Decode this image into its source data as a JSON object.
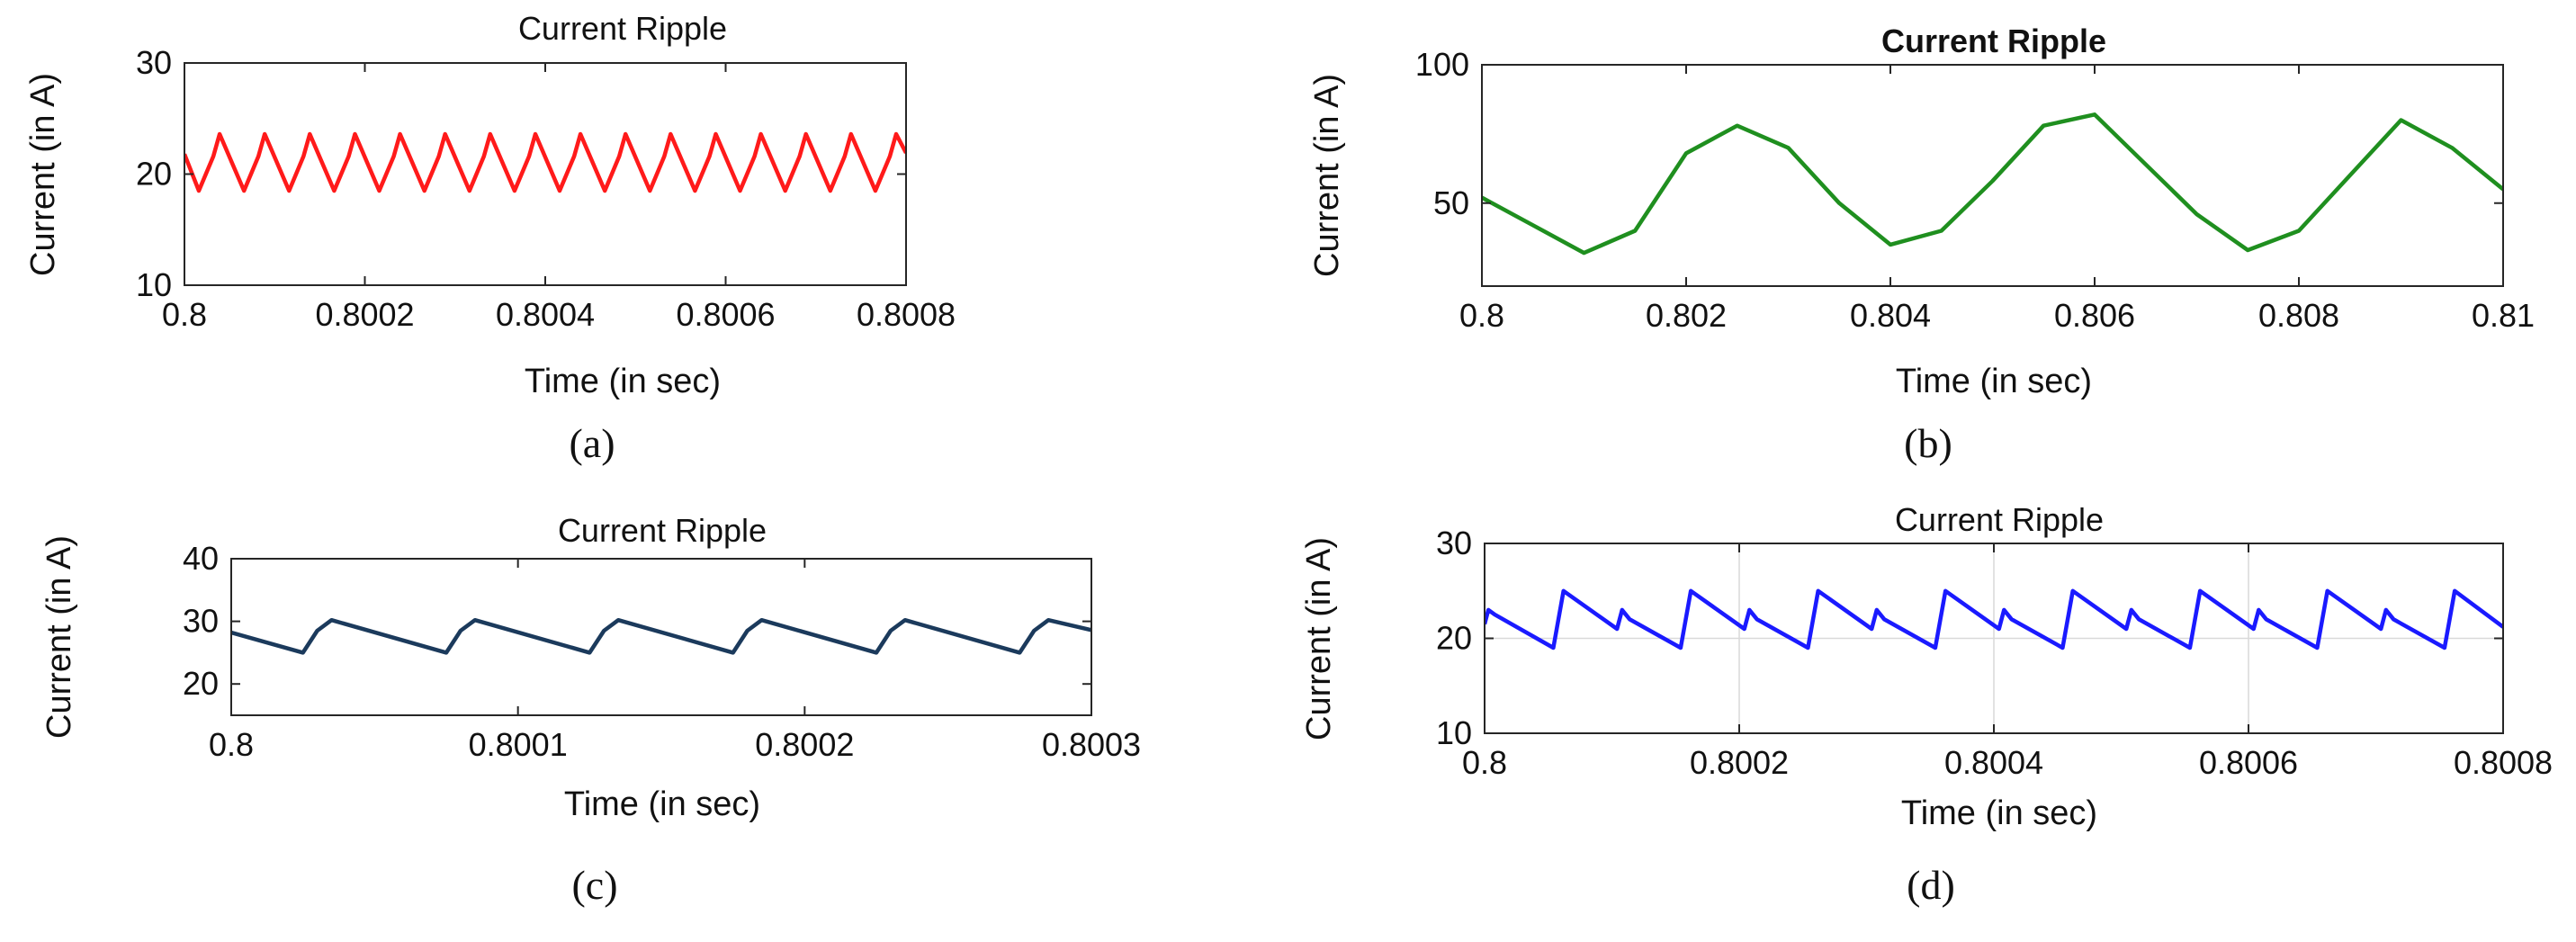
{
  "figure": {
    "panel_labels": [
      "(a)",
      "(b)",
      "(c)",
      "(d)"
    ]
  },
  "chart_data": [
    {
      "panel": "(a)",
      "type": "line",
      "title": "Current Ripple",
      "xlabel": "Time (in sec)",
      "ylabel": "Current (in A)",
      "xlim": [
        0.8,
        0.8008
      ],
      "ylim": [
        10,
        30
      ],
      "xticks": [
        0.8,
        0.8002,
        0.8004,
        0.8006,
        0.8008
      ],
      "xtick_labels": [
        "0.8",
        "0.8002",
        "0.8004",
        "0.8006",
        "0.8008"
      ],
      "yticks": [
        10,
        20,
        30
      ],
      "ytick_labels": [
        "10",
        "20",
        "30"
      ],
      "grid": false,
      "color": "#ff1a1a",
      "series": [
        {
          "waveform": "sawtooth",
          "period": 5e-05,
          "min": 18.5,
          "max": 23.6,
          "x": [
            0.8,
            0.800016,
            0.800032,
            0.800039,
            0.800066,
            0.800082,
            0.800089,
            0.800116,
            0.800132,
            0.800139,
            0.800166,
            0.800182,
            0.800189,
            0.800216,
            0.800232,
            0.800239,
            0.800266,
            0.800282,
            0.800289,
            0.800316,
            0.800332,
            0.800339,
            0.800366,
            0.800382,
            0.800389,
            0.800416,
            0.800432,
            0.800439,
            0.800466,
            0.800482,
            0.800489,
            0.800516,
            0.800532,
            0.800539,
            0.800566,
            0.800582,
            0.800589,
            0.800616,
            0.800632,
            0.800639,
            0.800666,
            0.800682,
            0.800689,
            0.800716,
            0.800732,
            0.800739,
            0.800766,
            0.800782,
            0.800789,
            0.8008
          ],
          "y": [
            21.8,
            18.5,
            21.6,
            23.6,
            18.5,
            21.6,
            23.6,
            18.5,
            21.6,
            23.6,
            18.5,
            21.6,
            23.6,
            18.5,
            21.6,
            23.6,
            18.5,
            21.6,
            23.6,
            18.5,
            21.6,
            23.6,
            18.5,
            21.6,
            23.6,
            18.5,
            21.6,
            23.6,
            18.5,
            21.6,
            23.6,
            18.5,
            21.6,
            23.6,
            18.5,
            21.6,
            23.6,
            18.5,
            21.6,
            23.6,
            18.5,
            21.6,
            23.6,
            18.5,
            21.6,
            23.6,
            18.5,
            21.6,
            23.6,
            21.9
          ]
        }
      ]
    },
    {
      "panel": "(b)",
      "type": "line",
      "title": "Current Ripple",
      "xlabel": "Time (in sec)",
      "ylabel": "Current (in A)",
      "xlim": [
        0.8,
        0.81
      ],
      "ylim": [
        20,
        100
      ],
      "xticks": [
        0.8,
        0.802,
        0.804,
        0.806,
        0.808,
        0.81
      ],
      "xtick_labels": [
        "0.8",
        "0.802",
        "0.804",
        "0.806",
        "0.808",
        "0.81"
      ],
      "yticks": [
        50,
        100
      ],
      "ytick_labels": [
        "50",
        "100"
      ],
      "grid": false,
      "color": "#1f8f1f",
      "series": [
        {
          "waveform": "sinusoid-plus-ripple",
          "ripple_amplitude": 6,
          "ripple_period": 0.0001,
          "x": [
            0.8,
            0.8005,
            0.801,
            0.8015,
            0.802,
            0.8025,
            0.803,
            0.8035,
            0.804,
            0.8045,
            0.805,
            0.8055,
            0.806,
            0.8065,
            0.807,
            0.8075,
            0.808,
            0.8085,
            0.809,
            0.8095,
            0.81
          ],
          "y": [
            52,
            42,
            32,
            40,
            68,
            78,
            70,
            50,
            35,
            40,
            58,
            78,
            82,
            64,
            46,
            33,
            40,
            60,
            80,
            70,
            55
          ]
        }
      ]
    },
    {
      "panel": "(c)",
      "type": "line",
      "title": "Current Ripple",
      "xlabel": "Time (in sec)",
      "ylabel": "Current (in A)",
      "xlim": [
        0.8,
        0.8003
      ],
      "ylim": [
        15,
        40
      ],
      "xticks": [
        0.8,
        0.8001,
        0.8002,
        0.8003
      ],
      "xtick_labels": [
        "0.8",
        "0.8001",
        "0.8002",
        "0.8003"
      ],
      "yticks": [
        20,
        30,
        40
      ],
      "ytick_labels": [
        "20",
        "30",
        "40"
      ],
      "grid": false,
      "color": "#1b3a5c",
      "series": [
        {
          "waveform": "sawtooth-with-steps",
          "period": 5e-05,
          "min": 25,
          "max": 30.2,
          "x": [
            0.8,
            0.800025,
            0.80003,
            0.800035,
            0.800075,
            0.80008,
            0.800085,
            0.800125,
            0.80013,
            0.800135,
            0.800175,
            0.80018,
            0.800185,
            0.800225,
            0.80023,
            0.800235,
            0.800275,
            0.80028,
            0.800285,
            0.8003
          ],
          "y": [
            28.2,
            25,
            28.5,
            30.2,
            25,
            28.5,
            30.2,
            25,
            28.5,
            30.2,
            25,
            28.5,
            30.2,
            25,
            28.5,
            30.2,
            25,
            28.5,
            30.2,
            28.6
          ]
        }
      ]
    },
    {
      "panel": "(d)",
      "type": "line",
      "title": "Current Ripple",
      "xlabel": "Time (in sec)",
      "ylabel": "Current (in A)",
      "xlim": [
        0.8,
        0.8008
      ],
      "ylim": [
        10,
        30
      ],
      "xticks": [
        0.8,
        0.8002,
        0.8004,
        0.8006,
        0.8008
      ],
      "xtick_labels": [
        "0.8",
        "0.8002",
        "0.8004",
        "0.8006",
        "0.8008"
      ],
      "yticks": [
        10,
        20,
        30
      ],
      "ytick_labels": [
        "10",
        "20",
        "30"
      ],
      "grid": true,
      "color": "#1a1aff",
      "series": [
        {
          "waveform": "double-sawtooth",
          "period": 0.0001,
          "x": [
            0.8,
            0.800003,
            0.800008,
            0.800054,
            0.800062,
            0.800104,
            0.800108,
            0.800114,
            0.800154,
            0.800162,
            0.800204,
            0.800208,
            0.800214,
            0.800254,
            0.800262,
            0.800304,
            0.800308,
            0.800314,
            0.800354,
            0.800362,
            0.800404,
            0.800408,
            0.800414,
            0.800454,
            0.800462,
            0.800504,
            0.800508,
            0.800514,
            0.800554,
            0.800562,
            0.800604,
            0.800608,
            0.800614,
            0.800654,
            0.800662,
            0.800704,
            0.800708,
            0.800714,
            0.800754,
            0.800762,
            0.8008
          ],
          "y": [
            21.5,
            23,
            22.5,
            19,
            25,
            21,
            23,
            22,
            19,
            25,
            21,
            23,
            22,
            19,
            25,
            21,
            23,
            22,
            19,
            25,
            21,
            23,
            22,
            19,
            25,
            21,
            23,
            22,
            19,
            25,
            21,
            23,
            22,
            19,
            25,
            21,
            23,
            22,
            19,
            25,
            21.2
          ]
        }
      ]
    }
  ]
}
